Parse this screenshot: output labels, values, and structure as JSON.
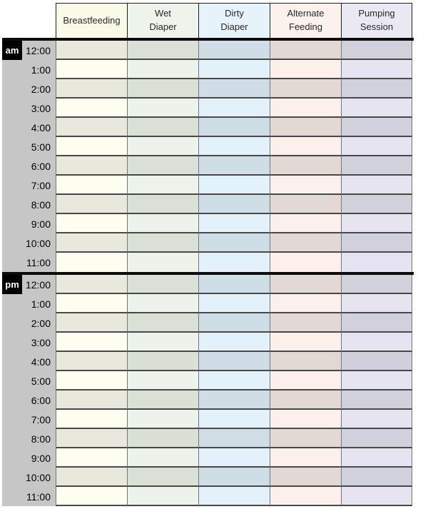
{
  "table": {
    "columns": [
      {
        "id": "breastfeeding",
        "label": "Breastfeeding",
        "header_bg": "#fafae9",
        "row_light": "#fdfdf0",
        "row_dark": "#e9e8dd"
      },
      {
        "id": "wet-diaper",
        "label": "Wet\nDiaper",
        "header_bg": "#eef4eb",
        "row_light": "#edf3ea",
        "row_dark": "#dbe0d7"
      },
      {
        "id": "dirty-diaper",
        "label": "Dirty\nDiaper",
        "header_bg": "#e7f3fb",
        "row_light": "#e3f1fb",
        "row_dark": "#cfdde7"
      },
      {
        "id": "alternate-feeding",
        "label": "Alternate\nFeeding",
        "header_bg": "#fbf1ed",
        "row_light": "#fbf0ec",
        "row_dark": "#e3d9d4"
      },
      {
        "id": "pumping-session",
        "label": "Pumping\nSession",
        "header_bg": "#e9e8f3",
        "row_light": "#e6e4f1",
        "row_dark": "#d1d1dd"
      }
    ],
    "sections": [
      {
        "meridiem": "am",
        "times": [
          "12:00",
          "1:00",
          "2:00",
          "3:00",
          "4:00",
          "5:00",
          "6:00",
          "7:00",
          "8:00",
          "9:00",
          "10:00",
          "11:00"
        ]
      },
      {
        "meridiem": "pm",
        "times": [
          "12:00",
          "1:00",
          "2:00",
          "3:00",
          "4:00",
          "5:00",
          "6:00",
          "7:00",
          "8:00",
          "9:00",
          "10:00",
          "11:00"
        ]
      }
    ],
    "colors": {
      "time_column_bg": "#c6c6c6",
      "meridiem_badge_bg": "#000000",
      "meridiem_badge_text": "#ffffff",
      "divider": "#0c0c0c",
      "row_border": "#484848",
      "column_border": "#757575",
      "header_border": "#1f1f1f",
      "text": "#1c1c1c"
    }
  }
}
